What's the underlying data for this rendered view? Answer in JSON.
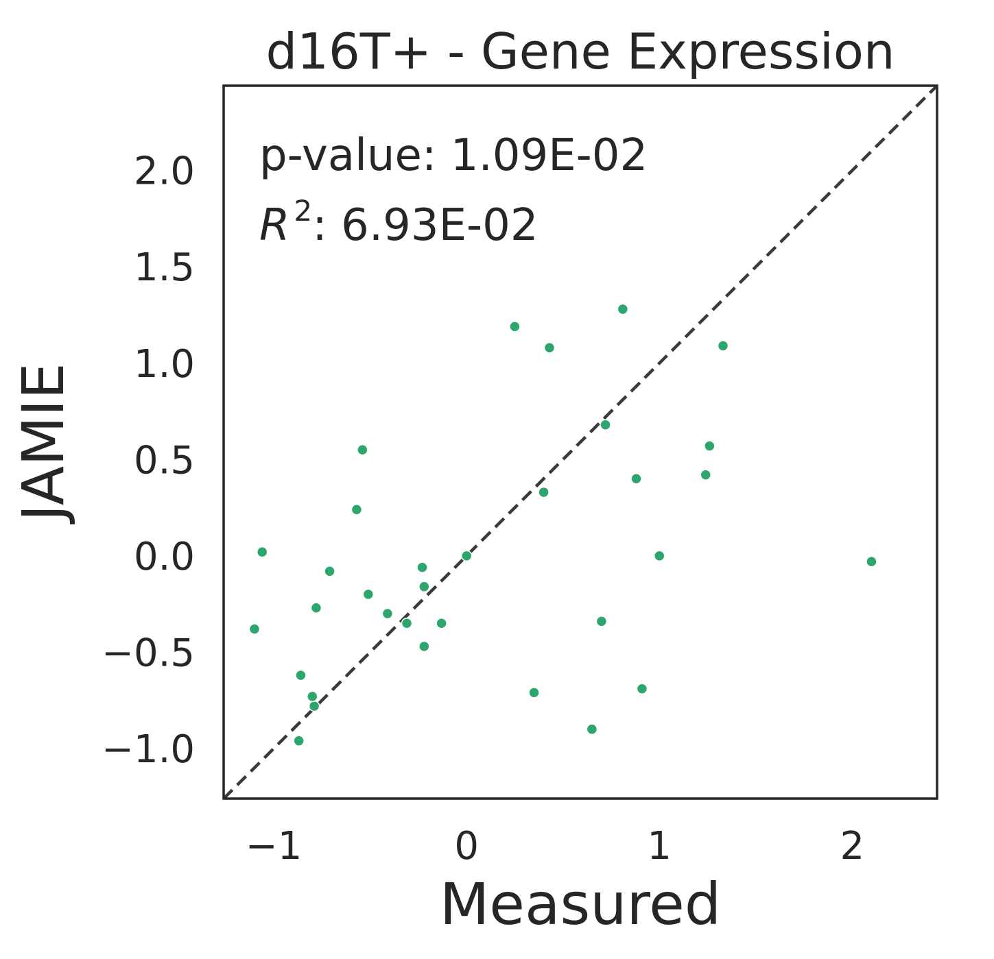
{
  "chart_data": {
    "type": "scatter",
    "title": "d16T+ - Gene Expression",
    "xlabel": "Measured",
    "ylabel": "JAMIE",
    "xlim": [
      -1.26,
      2.44
    ],
    "ylim": [
      -1.26,
      2.44
    ],
    "xticks": [
      -1,
      0,
      1,
      2
    ],
    "yticks": [
      -1.0,
      -0.5,
      0.0,
      0.5,
      1.0,
      1.5,
      2.0
    ],
    "xtick_labels": [
      "−1",
      "0",
      "1",
      "2"
    ],
    "ytick_labels": [
      "−1.0",
      "−0.5",
      "0.0",
      "0.5",
      "1.0",
      "1.5",
      "2.0"
    ],
    "grid": false,
    "identity_line": true,
    "annotations": {
      "pvalue_label": "p-value: 1.09E-02",
      "r2_symbol": "R",
      "r2_exponent": "2",
      "r2_value": ": 6.93E-02"
    },
    "point_color": "#2ca66d",
    "line_color": "#3a3a3a",
    "points": [
      {
        "x": -1.1,
        "y": -0.38
      },
      {
        "x": -1.06,
        "y": 0.02
      },
      {
        "x": -0.86,
        "y": -0.62
      },
      {
        "x": -0.87,
        "y": -0.96
      },
      {
        "x": -0.79,
        "y": -0.78
      },
      {
        "x": -0.8,
        "y": -0.73
      },
      {
        "x": -0.78,
        "y": -0.27
      },
      {
        "x": -0.71,
        "y": -0.08
      },
      {
        "x": -0.57,
        "y": 0.24
      },
      {
        "x": -0.54,
        "y": 0.55
      },
      {
        "x": -0.51,
        "y": -0.2
      },
      {
        "x": -0.41,
        "y": -0.3
      },
      {
        "x": -0.31,
        "y": -0.35
      },
      {
        "x": -0.23,
        "y": -0.06
      },
      {
        "x": -0.22,
        "y": -0.16
      },
      {
        "x": -0.22,
        "y": -0.47
      },
      {
        "x": -0.13,
        "y": -0.35
      },
      {
        "x": 0.0,
        "y": 0.0
      },
      {
        "x": 0.25,
        "y": 1.19
      },
      {
        "x": 0.35,
        "y": -0.71
      },
      {
        "x": 0.4,
        "y": 0.33
      },
      {
        "x": 0.43,
        "y": 1.08
      },
      {
        "x": 0.65,
        "y": -0.9
      },
      {
        "x": 0.7,
        "y": -0.34
      },
      {
        "x": 0.72,
        "y": 0.68
      },
      {
        "x": 0.81,
        "y": 1.28
      },
      {
        "x": 0.88,
        "y": 0.4
      },
      {
        "x": 0.91,
        "y": -0.69
      },
      {
        "x": 1.0,
        "y": 0.0
      },
      {
        "x": 1.24,
        "y": 0.42
      },
      {
        "x": 1.26,
        "y": 0.57
      },
      {
        "x": 1.33,
        "y": 1.09
      },
      {
        "x": 2.1,
        "y": -0.03
      }
    ]
  }
}
